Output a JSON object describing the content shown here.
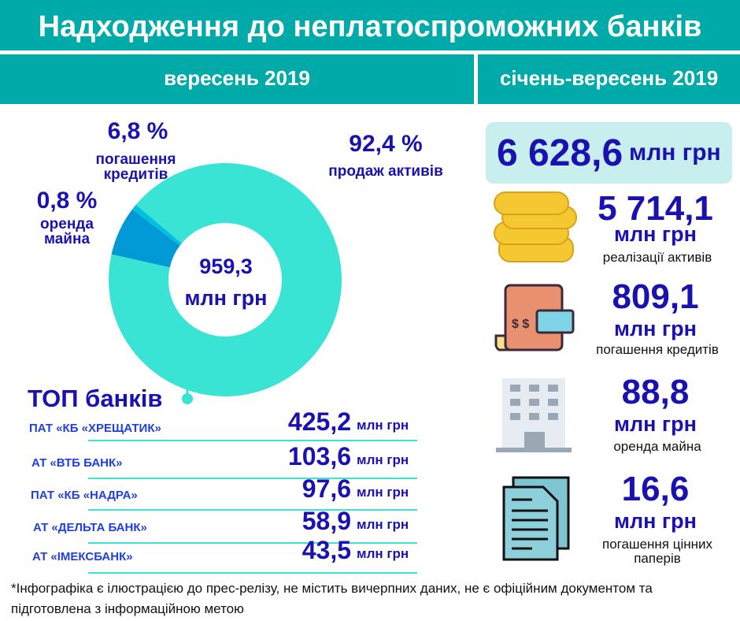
{
  "title": "Надходження до неплатоспроможних банків",
  "period_month": "вересень 2019",
  "period_ytd": "січень-вересень 2019",
  "colors": {
    "header": "#00aaa8",
    "text": "#1a12b0",
    "sale": "#3ae4d4",
    "loans": "#0099d6",
    "rent": "#00c0e0"
  },
  "chart_data": {
    "type": "pie",
    "donut": true,
    "center_value": "959,3",
    "center_unit": "млн грн",
    "slices": [
      {
        "label": "продаж активів",
        "pct_label": "92,4 %",
        "value": 92.4
      },
      {
        "label": "погашення кредитів",
        "pct_label": "6,8 %",
        "value": 6.8
      },
      {
        "label": "оренда майна",
        "pct_label": "0,8 %",
        "value": 0.8
      }
    ]
  },
  "labels": {
    "loans_l1": "погашення",
    "loans_l2": "кредитів",
    "rent_l1": "оренда",
    "rent_l2": "майна"
  },
  "top": {
    "title": "ТОП банків",
    "unit": "млн грн",
    "banks": [
      {
        "name": "ПАТ «КБ «ХРЕЩАТИК»",
        "value": "425,2"
      },
      {
        "name": "АТ «ВТБ БАНК»",
        "value": "103,6"
      },
      {
        "name": "ПАТ «КБ «НАДРА»",
        "value": "97,6"
      },
      {
        "name": "АТ «ДЕЛЬТА БАНК»",
        "value": "58,9"
      },
      {
        "name": "АТ «ІМЕКСБАНК»",
        "value": "43,5"
      }
    ]
  },
  "ytd": {
    "total": "6 628,6",
    "unit": "млн грн",
    "items": [
      {
        "value": "5 714,1",
        "caption": "реалізації активів",
        "icon": "coins-icon"
      },
      {
        "value": "809,1",
        "caption": "погашення кредитів",
        "icon": "invoice-card-icon"
      },
      {
        "value": "88,8",
        "caption": "оренда майна",
        "icon": "building-icon"
      },
      {
        "value": "16,6",
        "caption": "погашення цінних паперів",
        "icon": "documents-icon"
      }
    ]
  },
  "footnote": "*Інфографіка є ілюстрацією до прес-релізу, не містить вичерпних даних, не є офіційним документом та підготовлена з інформаційною метою"
}
